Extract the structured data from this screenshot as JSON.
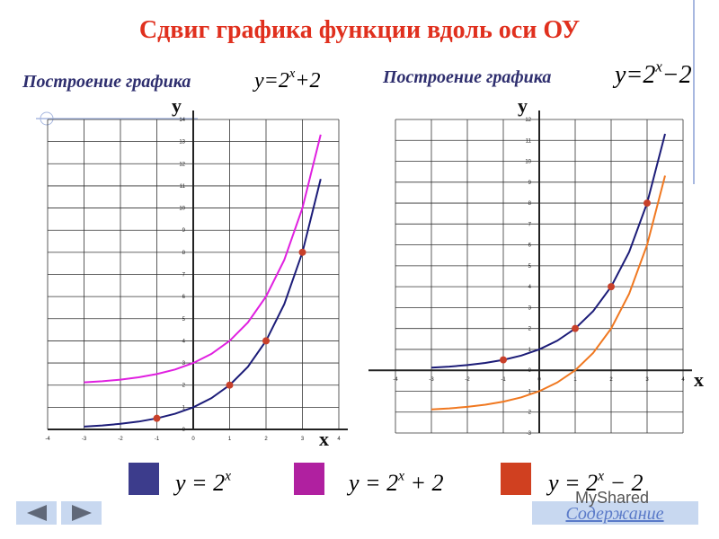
{
  "title": "Сдвиг графика функции вдоль оси ОУ",
  "chart_data": [
    {
      "type": "line",
      "subtitle": "Построение графика",
      "formula": {
        "base": "y=2",
        "exp": "x",
        "tail": "+2"
      },
      "xlabel": "x",
      "ylabel": "y",
      "xlim": [
        -4,
        4
      ],
      "ylim": [
        0,
        14
      ],
      "xticks": [
        -4,
        -3,
        -2,
        -1,
        0,
        1,
        2,
        3,
        4
      ],
      "yticks": [
        0,
        1,
        2,
        3,
        4,
        5,
        6,
        7,
        8,
        9,
        10,
        11,
        12,
        13,
        14
      ],
      "grid": true,
      "x": [
        -3,
        -2.5,
        -2,
        -1.5,
        -1,
        -0.5,
        0,
        0.5,
        1,
        1.5,
        2,
        2.5,
        3,
        3.5
      ],
      "series": [
        {
          "name": "y=2^x",
          "color": "#1c1c78",
          "values": [
            0.125,
            0.177,
            0.25,
            0.354,
            0.5,
            0.707,
            1,
            1.414,
            2,
            2.828,
            4,
            5.657,
            8,
            11.314
          ]
        },
        {
          "name": "y=2^x+2",
          "color": "#e020e0",
          "values": [
            2.125,
            2.177,
            2.25,
            2.354,
            2.5,
            2.707,
            3,
            3.414,
            4,
            4.828,
            6,
            7.657,
            10,
            13.314
          ]
        },
        {
          "mode": "markers",
          "color": "#c8402a",
          "x": [
            -1,
            1,
            2,
            3
          ],
          "values": [
            0.5,
            2,
            4,
            8
          ]
        }
      ]
    },
    {
      "type": "line",
      "subtitle": "Построение графика",
      "formula": {
        "base": "y=2",
        "exp": "x",
        "tail": "−2"
      },
      "xlabel": "x",
      "ylabel": "y",
      "xlim": [
        -4,
        4
      ],
      "ylim": [
        -3,
        12
      ],
      "xticks": [
        -4,
        -3,
        -2,
        -1,
        0,
        1,
        2,
        3,
        4
      ],
      "yticks": [
        -3,
        -2,
        -1,
        0,
        1,
        2,
        3,
        4,
        5,
        6,
        7,
        8,
        9,
        10,
        11,
        12
      ],
      "grid": true,
      "x": [
        -3,
        -2.5,
        -2,
        -1.5,
        -1,
        -0.5,
        0,
        0.5,
        1,
        1.5,
        2,
        2.5,
        3,
        3.5
      ],
      "series": [
        {
          "name": "y=2^x",
          "color": "#1c1c78",
          "values": [
            0.125,
            0.177,
            0.25,
            0.354,
            0.5,
            0.707,
            1,
            1.414,
            2,
            2.828,
            4,
            5.657,
            8,
            11.314
          ]
        },
        {
          "name": "y=2^x-2",
          "color": "#f07820",
          "values": [
            -1.875,
            -1.823,
            -1.75,
            -1.646,
            -1.5,
            -1.293,
            -1,
            -0.586,
            0,
            0.828,
            2,
            3.657,
            6,
            9.314
          ]
        },
        {
          "mode": "markers",
          "color": "#c8402a",
          "x": [
            -1,
            1,
            2,
            3
          ],
          "values": [
            0.5,
            2,
            4,
            8
          ]
        }
      ]
    }
  ],
  "legend": [
    {
      "color": "#3c3c8c",
      "formula": {
        "base": "y = 2",
        "exp": "x"
      }
    },
    {
      "color": "#b020a0",
      "formula": {
        "base": "y = 2",
        "exp": "x",
        "tail": " + 2"
      }
    },
    {
      "color": "#d04020",
      "formula": {
        "base": "y = 2",
        "exp": "x",
        "tail": " − 2"
      }
    }
  ],
  "nav": {
    "contents": "Содержание"
  },
  "watermark": "MyShared"
}
